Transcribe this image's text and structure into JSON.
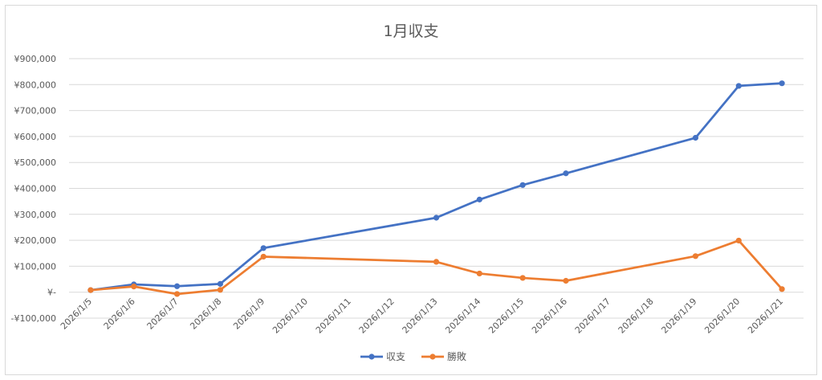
{
  "chart_data": {
    "type": "line",
    "title": "1月収支",
    "categories": [
      "2026/1/5",
      "2026/1/6",
      "2026/1/7",
      "2026/1/8",
      "2026/1/9",
      "2026/1/10",
      "2026/1/11",
      "2026/1/12",
      "2026/1/13",
      "2026/1/14",
      "2026/1/15",
      "2026/1/16",
      "2026/1/17",
      "2026/1/18",
      "2026/1/19",
      "2026/1/20",
      "2026/1/21"
    ],
    "y_ticks": [
      "¥900,000",
      "¥800,000",
      "¥700,000",
      "¥600,000",
      "¥500,000",
      "¥400,000",
      "¥300,000",
      "¥200,000",
      "¥100,000",
      "¥-",
      "-¥100,000"
    ],
    "ylim": [
      -100000,
      900000
    ],
    "grid": true,
    "legend_position": "bottom",
    "series": [
      {
        "name": "収支",
        "color": "#4472c4",
        "points": [
          {
            "x": "2026/1/5",
            "y": 8000
          },
          {
            "x": "2026/1/6",
            "y": 30000
          },
          {
            "x": "2026/1/7",
            "y": 23000
          },
          {
            "x": "2026/1/8",
            "y": 32000
          },
          {
            "x": "2026/1/9",
            "y": 170000
          },
          {
            "x": "2026/1/13",
            "y": 287000
          },
          {
            "x": "2026/1/14",
            "y": 357000
          },
          {
            "x": "2026/1/15",
            "y": 413000
          },
          {
            "x": "2026/1/16",
            "y": 458000
          },
          {
            "x": "2026/1/19",
            "y": 595000
          },
          {
            "x": "2026/1/20",
            "y": 795000
          },
          {
            "x": "2026/1/21",
            "y": 805000
          }
        ]
      },
      {
        "name": "勝敗",
        "color": "#ed7d31",
        "points": [
          {
            "x": "2026/1/5",
            "y": 8000
          },
          {
            "x": "2026/1/6",
            "y": 22000
          },
          {
            "x": "2026/1/7",
            "y": -7000
          },
          {
            "x": "2026/1/8",
            "y": 9000
          },
          {
            "x": "2026/1/9",
            "y": 137000
          },
          {
            "x": "2026/1/13",
            "y": 117000
          },
          {
            "x": "2026/1/14",
            "y": 72000
          },
          {
            "x": "2026/1/15",
            "y": 55000
          },
          {
            "x": "2026/1/16",
            "y": 44000
          },
          {
            "x": "2026/1/19",
            "y": 139000
          },
          {
            "x": "2026/1/20",
            "y": 199000
          },
          {
            "x": "2026/1/21",
            "y": 12000
          }
        ]
      }
    ]
  }
}
